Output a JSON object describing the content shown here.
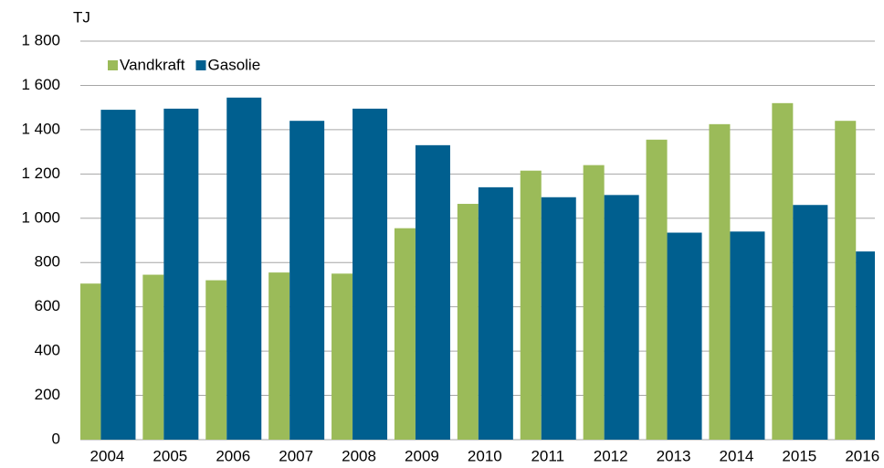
{
  "chart_data": {
    "type": "bar",
    "y_unit": "TJ",
    "categories": [
      "2004",
      "2005",
      "2006",
      "2007",
      "2008",
      "2009",
      "2010",
      "2011",
      "2012",
      "2013",
      "2014",
      "2015",
      "2016"
    ],
    "series": [
      {
        "name": "Vandkraft",
        "color": "#9bbb59",
        "values": [
          705,
          745,
          720,
          755,
          750,
          955,
          1065,
          1215,
          1240,
          1355,
          1425,
          1520,
          1440
        ]
      },
      {
        "name": "Gasolie",
        "color": "#005f8f",
        "values": [
          1490,
          1495,
          1545,
          1440,
          1495,
          1330,
          1140,
          1095,
          1105,
          935,
          940,
          1060,
          850
        ]
      }
    ],
    "ylim": [
      0,
      1800
    ],
    "yticks": [
      0,
      200,
      400,
      600,
      800,
      {
        "value": 1000,
        "label": "1 000"
      },
      {
        "value": 1200,
        "label": "1 200"
      },
      {
        "value": 1400,
        "label": "1 400"
      },
      {
        "value": 1600,
        "label": "1 600"
      },
      {
        "value": 1800,
        "label": "1 800"
      }
    ],
    "grid": true,
    "legend": "top-left"
  }
}
